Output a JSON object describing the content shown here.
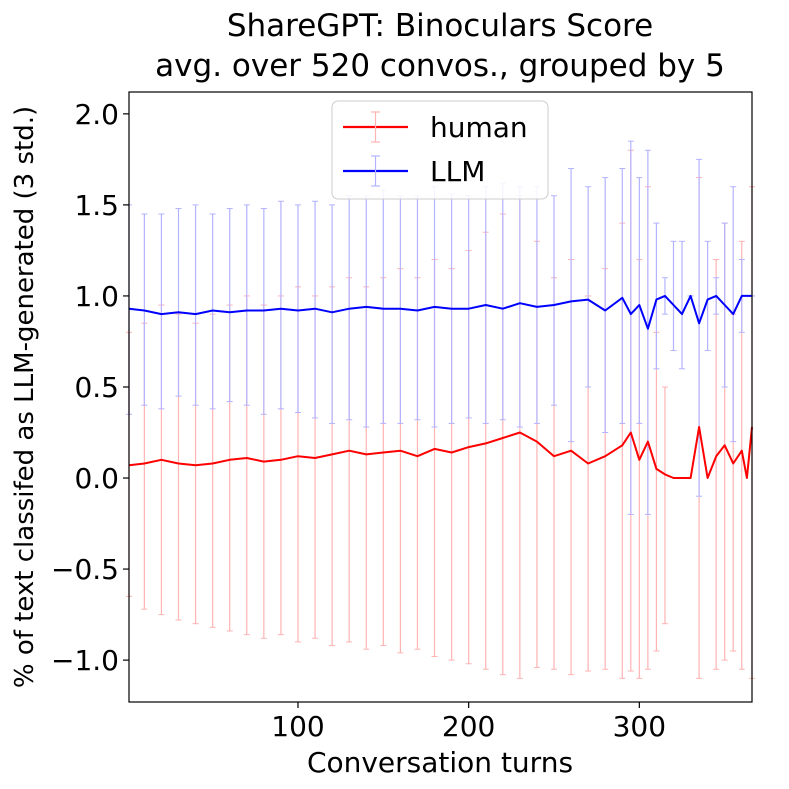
{
  "chart_data": {
    "type": "line",
    "title_lines": [
      "ShareGPT: Binoculars Score",
      "avg. over 520 convos., grouped by 5"
    ],
    "xlabel": "Conversation turns",
    "ylabel": "% of text classifed as LLM-generated (3 std.)",
    "xlim": [
      1,
      366
    ],
    "ylim": [
      -1.23,
      2.12
    ],
    "x_ticks": [
      100,
      200,
      300
    ],
    "y_ticks": [
      -1.0,
      -0.5,
      0.0,
      0.5,
      1.0,
      1.5,
      2.0
    ],
    "y_tick_labels": [
      "−1.0",
      "−0.5",
      "0.0",
      "0.5",
      "1.0",
      "1.5",
      "2.0"
    ],
    "legend_position": "top-center",
    "error_bars": "3 std.",
    "series": [
      {
        "name": "human",
        "color": "#ff0000",
        "errorbar_color": "#ffb3b3",
        "x": [
          1,
          10,
          20,
          30,
          40,
          50,
          60,
          70,
          80,
          90,
          100,
          110,
          120,
          130,
          140,
          150,
          160,
          170,
          180,
          190,
          200,
          210,
          220,
          230,
          240,
          250,
          260,
          270,
          280,
          290,
          295,
          300,
          305,
          310,
          315,
          320,
          325,
          330,
          335,
          340,
          345,
          350,
          355,
          360,
          363,
          366
        ],
        "y": [
          0.07,
          0.08,
          0.1,
          0.08,
          0.07,
          0.08,
          0.1,
          0.11,
          0.09,
          0.1,
          0.12,
          0.11,
          0.13,
          0.15,
          0.13,
          0.14,
          0.15,
          0.12,
          0.16,
          0.14,
          0.17,
          0.19,
          0.22,
          0.25,
          0.2,
          0.12,
          0.15,
          0.08,
          0.12,
          0.18,
          0.25,
          0.1,
          0.2,
          0.05,
          0.02,
          0.0,
          0.0,
          0.0,
          0.28,
          0.0,
          0.12,
          0.18,
          0.08,
          0.15,
          0.0,
          0.28
        ],
        "err_low": [
          -0.65,
          -0.72,
          -0.75,
          -0.78,
          -0.8,
          -0.82,
          -0.84,
          -0.86,
          -0.88,
          -0.86,
          -0.9,
          -0.88,
          -0.92,
          -0.9,
          -0.94,
          -0.92,
          -0.96,
          -0.94,
          -0.98,
          -1.0,
          -1.02,
          -1.05,
          -1.08,
          -1.1,
          -1.04,
          -1.05,
          -1.08,
          -1.06,
          -1.05,
          -1.1,
          -1.06,
          -1.1,
          -1.05,
          -0.95,
          -0.8,
          null,
          null,
          null,
          -1.1,
          null,
          -1.05,
          -1.0,
          -0.95,
          -1.05,
          null,
          -1.1
        ],
        "err_high": [
          0.8,
          0.85,
          0.95,
          0.9,
          0.85,
          0.9,
          0.95,
          1.0,
          0.95,
          1.0,
          1.05,
          1.0,
          1.05,
          1.1,
          1.05,
          1.1,
          1.15,
          1.1,
          1.2,
          1.15,
          1.25,
          1.35,
          1.45,
          1.55,
          1.3,
          1.1,
          1.2,
          1.0,
          1.15,
          1.4,
          1.8,
          1.2,
          1.6,
          0.8,
          0.5,
          null,
          null,
          null,
          1.65,
          null,
          1.2,
          1.4,
          0.9,
          1.3,
          null,
          1.6
        ]
      },
      {
        "name": "LLM",
        "color": "#0000ff",
        "errorbar_color": "#b3b3ff",
        "x": [
          1,
          10,
          20,
          30,
          40,
          50,
          60,
          70,
          80,
          90,
          100,
          110,
          120,
          130,
          140,
          150,
          160,
          170,
          180,
          190,
          200,
          210,
          220,
          230,
          240,
          250,
          260,
          270,
          280,
          290,
          295,
          300,
          305,
          310,
          315,
          320,
          325,
          330,
          335,
          340,
          345,
          350,
          355,
          360,
          363,
          366
        ],
        "y": [
          0.93,
          0.92,
          0.9,
          0.91,
          0.9,
          0.92,
          0.91,
          0.92,
          0.92,
          0.93,
          0.92,
          0.93,
          0.91,
          0.93,
          0.94,
          0.93,
          0.93,
          0.92,
          0.94,
          0.93,
          0.93,
          0.95,
          0.93,
          0.96,
          0.94,
          0.95,
          0.97,
          0.98,
          0.92,
          0.99,
          0.9,
          0.95,
          0.82,
          0.98,
          1.0,
          0.95,
          0.9,
          1.0,
          0.85,
          0.98,
          1.0,
          0.95,
          0.9,
          1.0,
          1.0,
          1.0
        ],
        "err_low": [
          0.35,
          0.4,
          0.38,
          0.45,
          0.4,
          0.38,
          0.42,
          0.4,
          0.35,
          0.38,
          0.36,
          0.33,
          0.3,
          0.32,
          0.28,
          0.3,
          0.3,
          0.32,
          0.28,
          0.3,
          0.33,
          0.3,
          0.32,
          0.28,
          0.3,
          0.4,
          0.2,
          0.5,
          0.25,
          0.3,
          -0.2,
          0.3,
          -0.2,
          0.6,
          0.9,
          0.7,
          0.6,
          1.0,
          -0.1,
          0.7,
          0.9,
          0.5,
          0.2,
          0.8,
          1.0,
          1.0
        ],
        "err_high": [
          1.5,
          1.45,
          1.45,
          1.48,
          1.5,
          1.45,
          1.48,
          1.5,
          1.48,
          1.52,
          1.5,
          1.52,
          1.5,
          1.55,
          1.55,
          1.58,
          1.55,
          1.55,
          1.6,
          1.56,
          1.55,
          1.6,
          1.62,
          1.6,
          1.6,
          1.55,
          1.7,
          1.6,
          1.65,
          1.7,
          1.85,
          1.65,
          1.8,
          1.4,
          1.1,
          1.3,
          1.3,
          1.0,
          1.75,
          1.3,
          1.1,
          1.4,
          1.6,
          1.2,
          1.0,
          1.0
        ]
      }
    ]
  }
}
